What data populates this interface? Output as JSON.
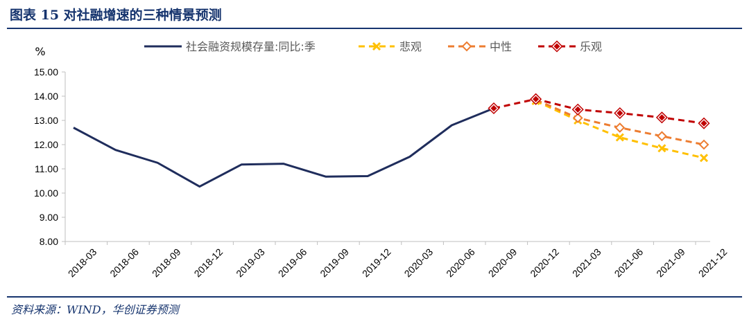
{
  "figure": {
    "title": "图表 15   对社融增速的三种情景预测",
    "source": "资料来源：WIND，华创证券预测"
  },
  "colors": {
    "heading": "#16346e",
    "axis": "#bfbfbf"
  },
  "chart_data": {
    "type": "line",
    "unit_label": "%",
    "categories": [
      "2018-03",
      "2018-06",
      "2018-09",
      "2018-12",
      "2019-03",
      "2019-06",
      "2019-09",
      "2019-12",
      "2020-03",
      "2020-06",
      "2020-09",
      "2020-12",
      "2021-03",
      "2021-06",
      "2021-09",
      "2021-12"
    ],
    "yticks": [
      "8.00",
      "9.00",
      "10.00",
      "11.00",
      "12.00",
      "13.00",
      "14.00",
      "15.00"
    ],
    "ylim": [
      8,
      15
    ],
    "grid": false,
    "legend_position": "top",
    "series": [
      {
        "name": "社会融资规模存量:同比:季",
        "color": "#1f2d5c",
        "style": "solid",
        "marker": "none",
        "values": [
          12.7,
          11.78,
          11.25,
          10.27,
          11.18,
          11.21,
          10.68,
          10.7,
          11.5,
          12.8,
          13.5,
          null,
          null,
          null,
          null,
          null
        ]
      },
      {
        "name": "悲观",
        "color": "#ffc000",
        "style": "dashed",
        "marker": "x",
        "values": [
          null,
          null,
          null,
          null,
          null,
          null,
          null,
          null,
          null,
          null,
          null,
          13.8,
          13.0,
          12.3,
          11.85,
          11.45
        ]
      },
      {
        "name": "中性",
        "color": "#ed7d31",
        "style": "dashed",
        "marker": "diamond-open",
        "values": [
          null,
          null,
          null,
          null,
          null,
          null,
          null,
          null,
          null,
          null,
          null,
          13.85,
          13.1,
          12.7,
          12.35,
          12.0
        ]
      },
      {
        "name": "乐观",
        "color": "#c00000",
        "style": "dashed",
        "marker": "diamond-filled",
        "values": [
          null,
          null,
          null,
          null,
          null,
          null,
          null,
          null,
          null,
          null,
          13.5,
          13.88,
          13.45,
          13.3,
          13.12,
          12.88
        ]
      }
    ]
  }
}
